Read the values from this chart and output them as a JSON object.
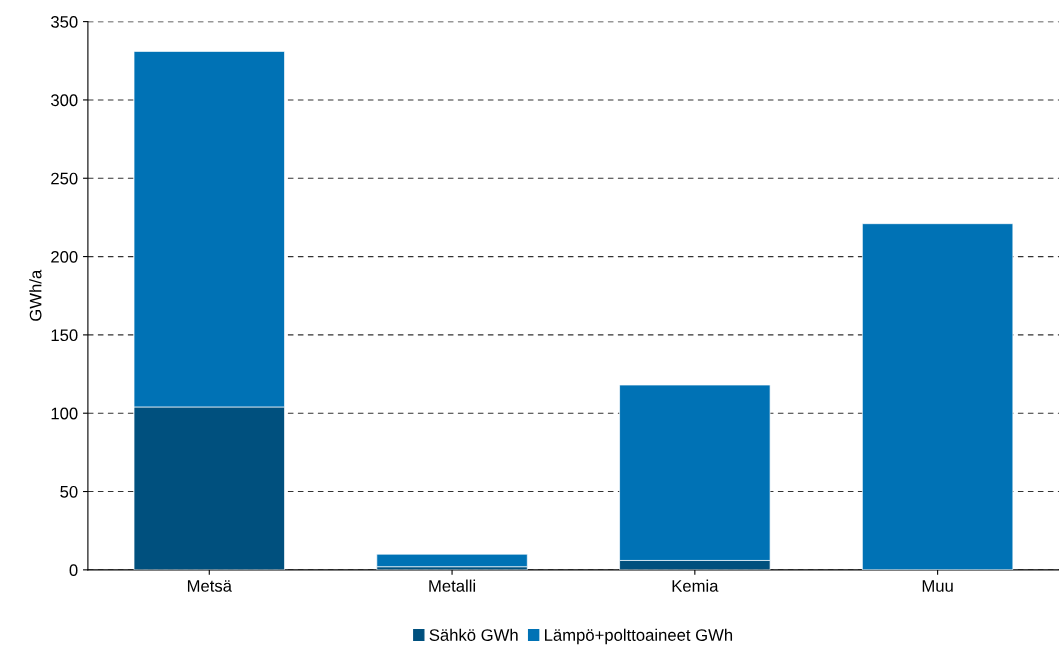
{
  "chart_data": {
    "type": "bar",
    "stacked": true,
    "ylabel": "GWh/a",
    "categories": [
      "Metsä",
      "Metalli",
      "Kemia",
      "Muu"
    ],
    "series": [
      {
        "name": "Sähkö GWh",
        "color": "#00507e",
        "values": [
          104,
          2,
          6,
          null
        ]
      },
      {
        "name": "Lämpö+polttoaineet GWh",
        "color": "#0072b5",
        "values": [
          227,
          8,
          112,
          221
        ]
      }
    ],
    "ylim": [
      0,
      350
    ],
    "yticks": [
      0,
      50,
      100,
      150,
      200,
      250,
      300,
      350
    ],
    "grid": "y",
    "legend": "bottom"
  }
}
